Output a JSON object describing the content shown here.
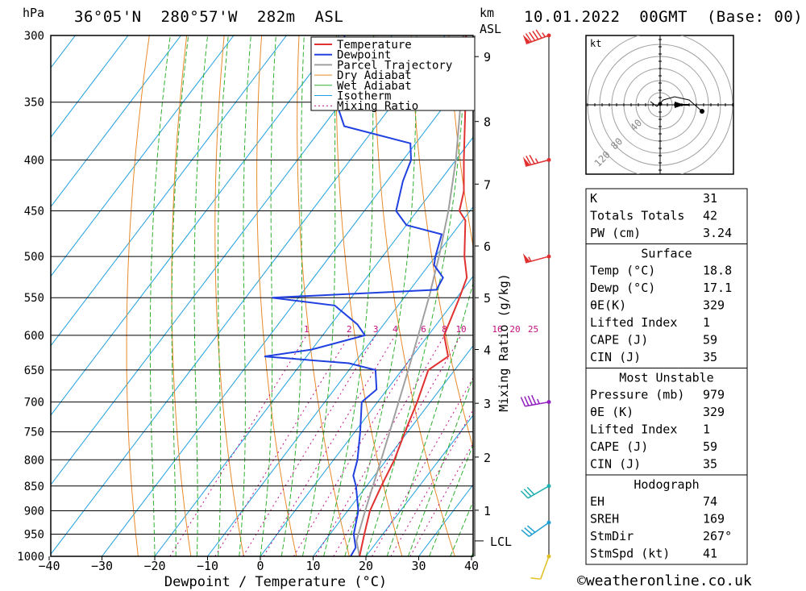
{
  "header": {
    "location": "36°05'N  280°57'W  282m  ASL",
    "datetime": "10.01.2022  00GMT  (Base: 00)",
    "left_unit": "hPa",
    "km_unit": "km",
    "asl_unit": "ASL",
    "hodo_unit": "kt",
    "copyright": "©weatheronline.co.uk"
  },
  "chart_data": {
    "type": "skew-t",
    "xlabel": "Dewpoint / Temperature (°C)",
    "mixing_axis_label": "Mixing Ratio (g/kg)",
    "x_ticks": [
      -40,
      -30,
      -20,
      -10,
      0,
      10,
      20,
      30,
      40
    ],
    "x_tick_labels": [
      "−40",
      "−30",
      "−20",
      "−10",
      "0",
      "10",
      "20",
      "30",
      "40"
    ],
    "pressure_levels": [
      300,
      350,
      400,
      450,
      500,
      550,
      600,
      650,
      700,
      750,
      800,
      850,
      900,
      950,
      1000
    ],
    "pressure_labels": [
      "300",
      "350",
      "400",
      "450",
      "500",
      "550",
      "600",
      "650",
      "700",
      "750",
      "800",
      "850",
      "900",
      "950",
      "1000"
    ],
    "km_ticks": [
      {
        "label": "9",
        "p": 315
      },
      {
        "label": "8",
        "p": 366
      },
      {
        "label": "7",
        "p": 423
      },
      {
        "label": "6",
        "p": 488
      },
      {
        "label": "5",
        "p": 550
      },
      {
        "label": "4",
        "p": 620
      },
      {
        "label": "3",
        "p": 702
      },
      {
        "label": "2",
        "p": 795
      },
      {
        "label": "1",
        "p": 899
      }
    ],
    "lcl": {
      "label": "LCL",
      "p": 965
    },
    "mixing_ratio_labels": [
      "1",
      "2",
      "3",
      "4",
      "6",
      "8",
      "10",
      "16",
      "20",
      "25"
    ],
    "mixing_ratio_values": [
      1,
      2,
      3,
      4,
      6,
      8,
      10,
      16,
      20,
      25
    ],
    "legend": [
      "Temperature",
      "Dewpoint",
      "Parcel Trajectory",
      "Dry Adiabat",
      "Wet Adiabat",
      "Isotherm",
      "Mixing Ratio"
    ],
    "colors": {
      "temperature": "#e03030",
      "dewpoint": "#2040e0",
      "parcel": "#a0a0a0",
      "dry_adiabat": "#e88a2a",
      "wet_adiabat": "#30b030",
      "isotherm": "#20a0e0",
      "mixing_ratio": "#c01080"
    },
    "temperature": [
      [
        1000,
        18.8
      ],
      [
        950,
        16.5
      ],
      [
        900,
        14.2
      ],
      [
        850,
        12.8
      ],
      [
        800,
        11.5
      ],
      [
        750,
        9.5
      ],
      [
        700,
        7.5
      ],
      [
        650,
        5.0
      ],
      [
        630,
        6.8
      ],
      [
        600,
        3.0
      ],
      [
        550,
        0.5
      ],
      [
        525,
        -1.0
      ],
      [
        500,
        -4.5
      ],
      [
        460,
        -9.5
      ],
      [
        450,
        -12.0
      ],
      [
        430,
        -14.0
      ],
      [
        400,
        -18.5
      ],
      [
        350,
        -26.5
      ],
      [
        300,
        -36.0
      ]
    ],
    "dewpoint": [
      [
        1000,
        17.1
      ],
      [
        980,
        16.8
      ],
      [
        950,
        14.5
      ],
      [
        900,
        12.0
      ],
      [
        850,
        8.0
      ],
      [
        830,
        6.0
      ],
      [
        800,
        4.5
      ],
      [
        750,
        1.0
      ],
      [
        700,
        -3.0
      ],
      [
        680,
        -2.0
      ],
      [
        650,
        -5.0
      ],
      [
        640,
        -11.0
      ],
      [
        630,
        -28.0
      ],
      [
        620,
        -20.0
      ],
      [
        600,
        -12.0
      ],
      [
        585,
        -15.0
      ],
      [
        560,
        -22.0
      ],
      [
        550,
        -35.0
      ],
      [
        540,
        -5.0
      ],
      [
        525,
        -5.5
      ],
      [
        510,
        -9.0
      ],
      [
        500,
        -10.0
      ],
      [
        475,
        -12.0
      ],
      [
        465,
        -20.0
      ],
      [
        450,
        -24.0
      ],
      [
        420,
        -27.0
      ],
      [
        400,
        -28.5
      ],
      [
        385,
        -31.0
      ],
      [
        370,
        -46.0
      ],
      [
        350,
        -51.0
      ],
      [
        300,
        -59.0
      ]
    ],
    "parcel": [
      [
        1000,
        18.8
      ],
      [
        965,
        16.0
      ],
      [
        900,
        13.3
      ],
      [
        850,
        11.2
      ],
      [
        800,
        9.0
      ],
      [
        750,
        6.6
      ],
      [
        700,
        4.0
      ],
      [
        650,
        1.2
      ],
      [
        600,
        -1.9
      ],
      [
        550,
        -5.3
      ],
      [
        500,
        -9.3
      ],
      [
        450,
        -14.1
      ],
      [
        400,
        -20.0
      ],
      [
        350,
        -27.4
      ],
      [
        300,
        -36.5
      ]
    ],
    "winds": [
      {
        "p": 300,
        "dir": 250,
        "speed": 95,
        "color": "#e03030"
      },
      {
        "p": 400,
        "dir": 255,
        "speed": 75,
        "color": "#e03030"
      },
      {
        "p": 500,
        "dir": 255,
        "speed": 55,
        "color": "#e03030"
      },
      {
        "p": 700,
        "dir": 260,
        "speed": 45,
        "color": "#9020c0"
      },
      {
        "p": 850,
        "dir": 240,
        "speed": 30,
        "color": "#20b0b0"
      },
      {
        "p": 925,
        "dir": 235,
        "speed": 30,
        "color": "#20a0d0"
      },
      {
        "p": 1000,
        "dir": 200,
        "speed": 10,
        "color": "#e0c020"
      }
    ],
    "hodograph": {
      "rings": [
        "40",
        "80",
        "120"
      ],
      "points": [
        [
          -6,
          2
        ],
        [
          -2,
          -1
        ],
        [
          2,
          3
        ],
        [
          9,
          5
        ],
        [
          18,
          3
        ],
        [
          26,
          -4
        ]
      ]
    }
  },
  "indices": {
    "basic": [
      {
        "label": "K",
        "value": "31"
      },
      {
        "label": "Totals Totals",
        "value": "42"
      },
      {
        "label": "PW (cm)",
        "value": "3.24"
      }
    ],
    "surface_title": "Surface",
    "surface": [
      {
        "label": "Temp (°C)",
        "value": "18.8"
      },
      {
        "label": "Dewp (°C)",
        "value": "17.1"
      },
      {
        "label": "θE(K)",
        "value": "329"
      },
      {
        "label": "Lifted Index",
        "value": "1"
      },
      {
        "label": "CAPE (J)",
        "value": "59"
      },
      {
        "label": "CIN (J)",
        "value": "35"
      }
    ],
    "unstable_title": "Most Unstable",
    "unstable": [
      {
        "label": "Pressure (mb)",
        "value": "979"
      },
      {
        "label": "θE (K)",
        "value": "329"
      },
      {
        "label": "Lifted Index",
        "value": "1"
      },
      {
        "label": "CAPE (J)",
        "value": "59"
      },
      {
        "label": "CIN (J)",
        "value": "35"
      }
    ],
    "hodo_title": "Hodograph",
    "hodo": [
      {
        "label": "EH",
        "value": "74"
      },
      {
        "label": "SREH",
        "value": "169"
      },
      {
        "label": "StmDir",
        "value": "267°"
      },
      {
        "label": "StmSpd (kt)",
        "value": "41"
      }
    ]
  }
}
